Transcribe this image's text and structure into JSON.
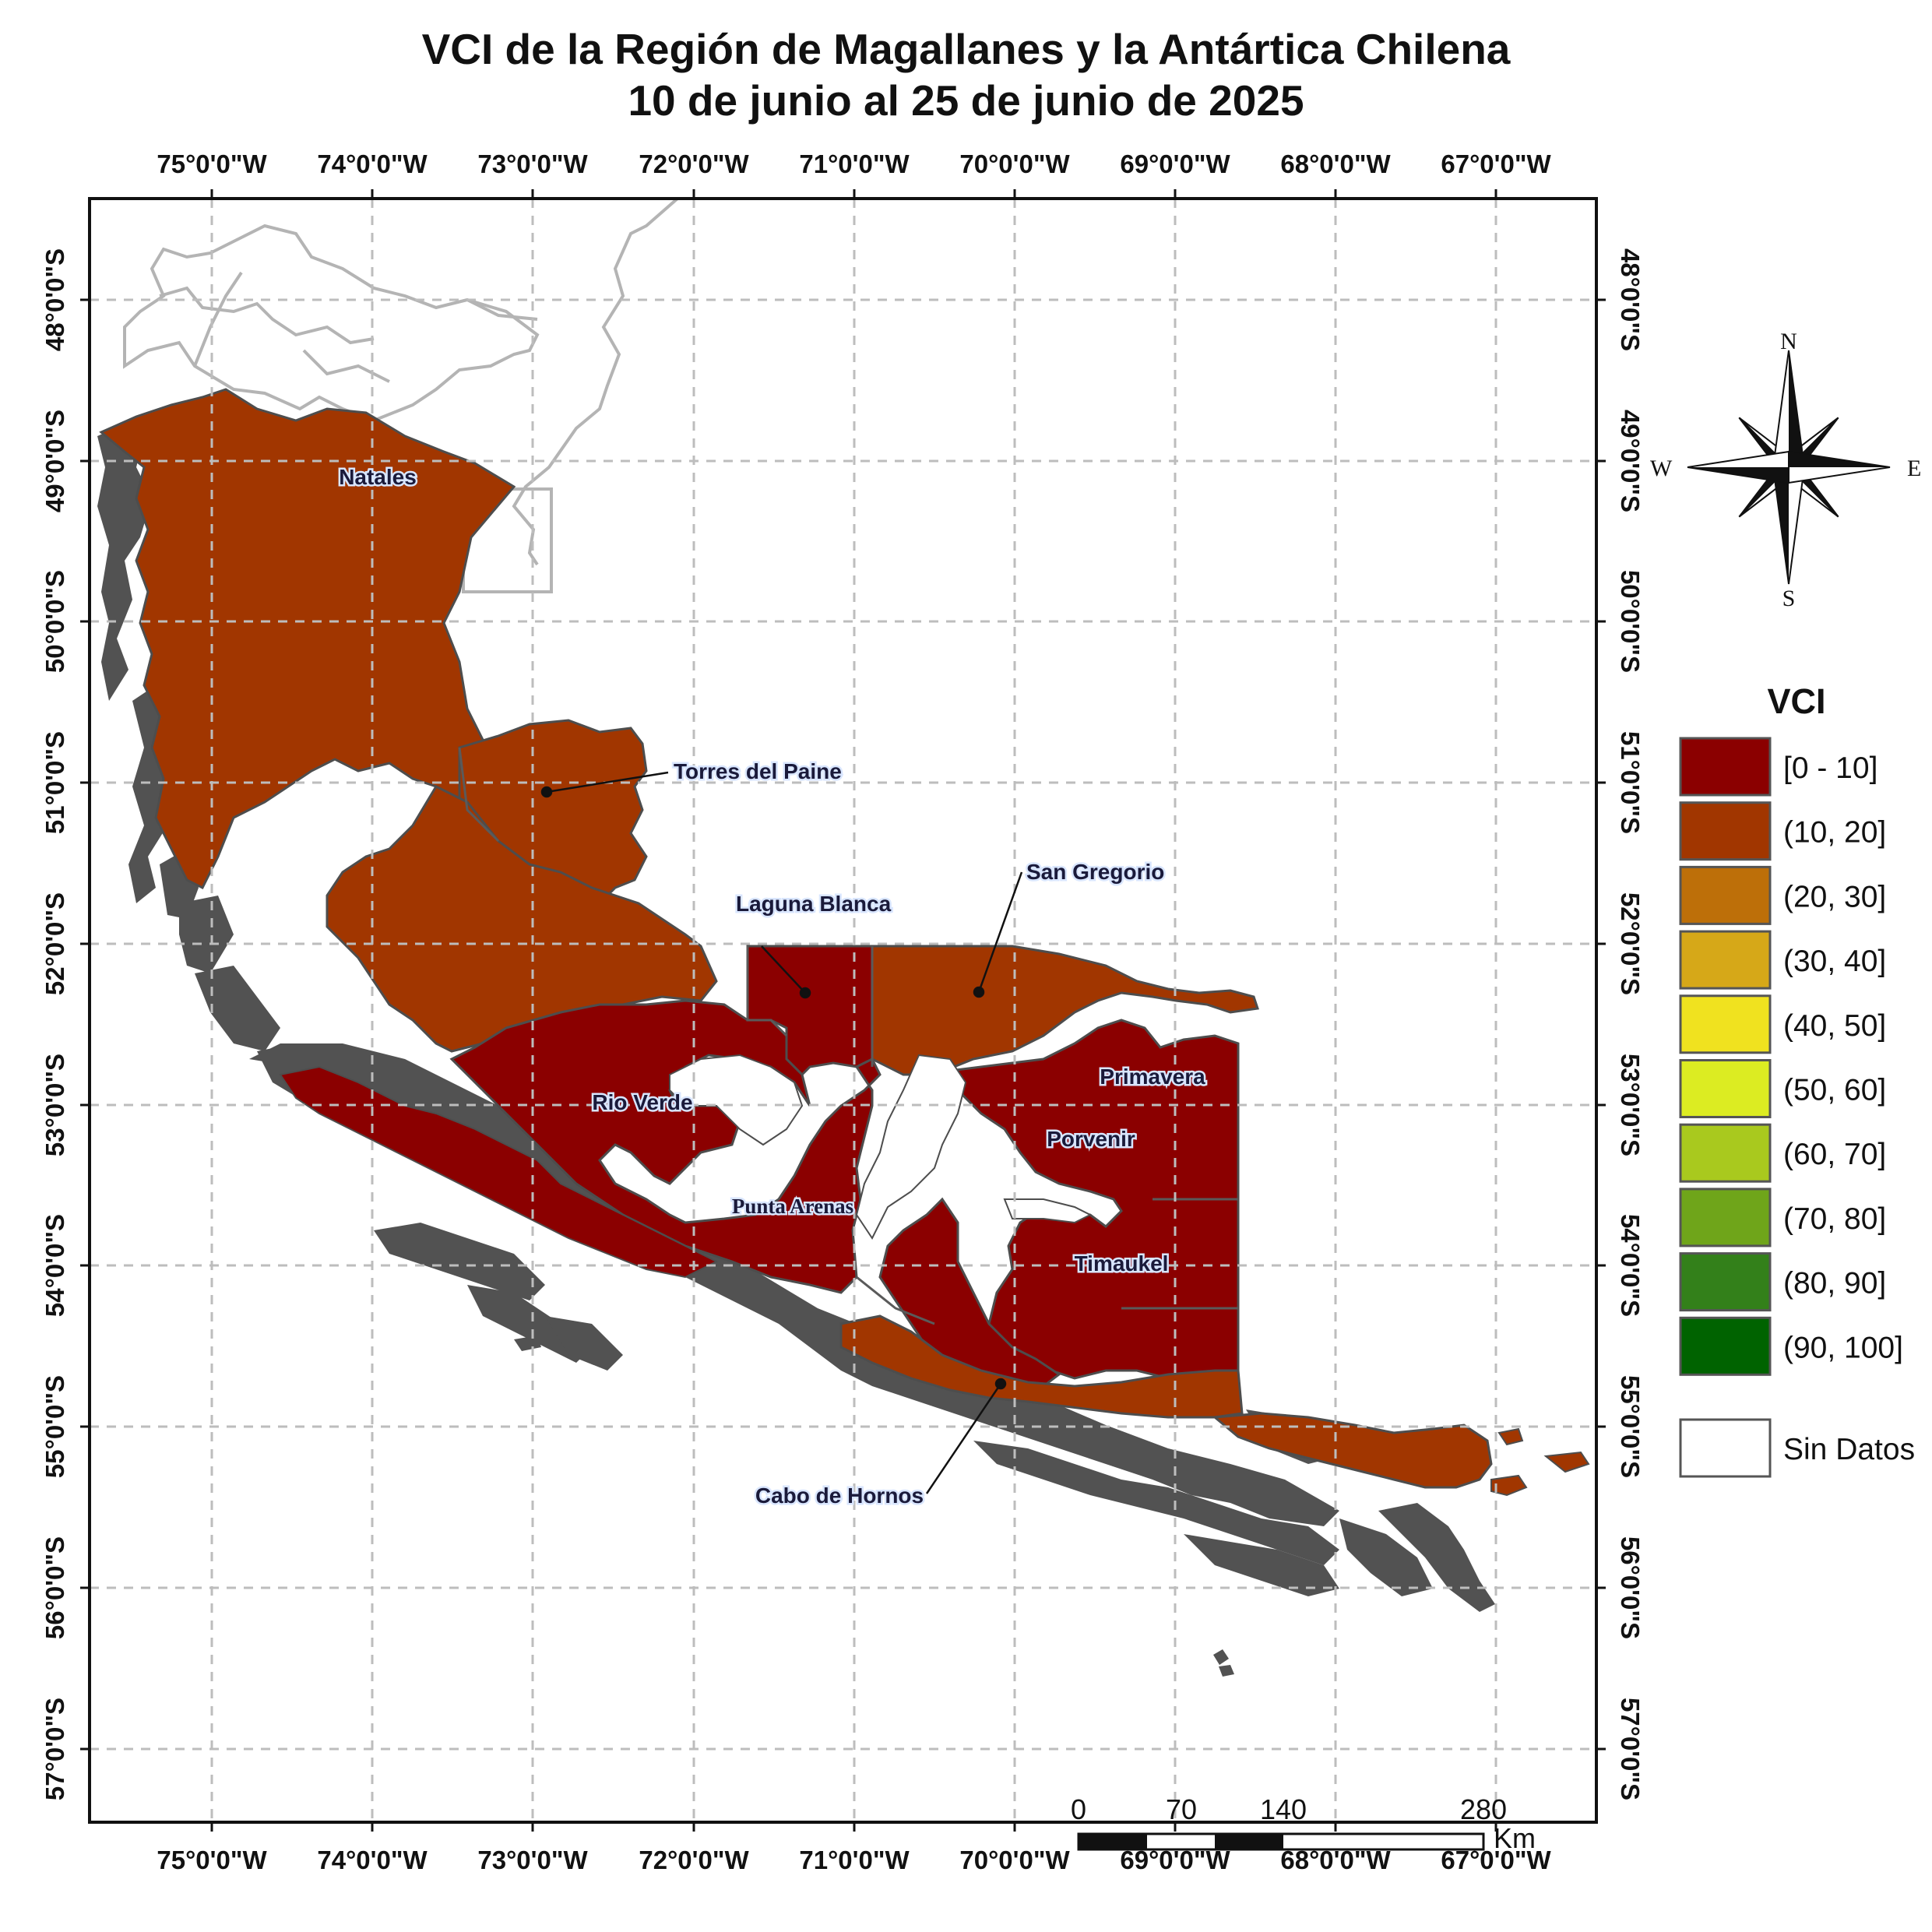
{
  "title": {
    "line1": "VCI de la Región de Magallanes y la Antártica Chilena",
    "line2": "10 de junio al 25 de junio de 2025"
  },
  "longitude_labels": [
    "75°0'0\"W",
    "74°0'0\"W",
    "73°0'0\"W",
    "72°0'0\"W",
    "71°0'0\"W",
    "70°0'0\"W",
    "69°0'0\"W",
    "68°0'0\"W",
    "67°0'0\"W"
  ],
  "latitude_labels": [
    "48°0'0\"S",
    "49°0'0\"S",
    "50°0'0\"S",
    "51°0'0\"S",
    "52°0'0\"S",
    "53°0'0\"S",
    "54°0'0\"S",
    "55°0'0\"S",
    "56°0'0\"S",
    "57°0'0\"S"
  ],
  "communes": [
    {
      "name": "Natales",
      "vci_class": "(10, 20]"
    },
    {
      "name": "Torres del Paine",
      "vci_class": "(10, 20]"
    },
    {
      "name": "Laguna Blanca",
      "vci_class": "[0 - 10]"
    },
    {
      "name": "San Gregorio",
      "vci_class": "(10, 20]"
    },
    {
      "name": "Rio Verde",
      "vci_class": "[0 - 10]"
    },
    {
      "name": "Punta Arenas",
      "vci_class": "[0 - 10]"
    },
    {
      "name": "Primavera",
      "vci_class": "[0 - 10]"
    },
    {
      "name": "Porvenir",
      "vci_class": "[0 - 10]"
    },
    {
      "name": "Timaukel",
      "vci_class": "[0 - 10]"
    },
    {
      "name": "Cabo de Hornos",
      "vci_class": "(10, 20]"
    }
  ],
  "legend": {
    "title": "VCI",
    "classes": [
      {
        "label": "[0 - 10]",
        "color": "#8b0000"
      },
      {
        "label": "(10, 20]",
        "color": "#a13600"
      },
      {
        "label": "(20, 30]",
        "color": "#bd6f09"
      },
      {
        "label": "(30, 40]",
        "color": "#d6a818"
      },
      {
        "label": "(40, 50]",
        "color": "#f0e21f"
      },
      {
        "label": "(50, 60]",
        "color": "#dcec22"
      },
      {
        "label": "(60, 70]",
        "color": "#a9c91e"
      },
      {
        "label": "(70, 80]",
        "color": "#6fa51a"
      },
      {
        "label": "(80, 90]",
        "color": "#33801a"
      },
      {
        "label": "(90, 100]",
        "color": "#006300"
      }
    ],
    "no_data": {
      "label": "Sin Datos",
      "color": "#ffffff"
    }
  },
  "compass": {
    "n": "N",
    "s": "S",
    "e": "E",
    "w": "W"
  },
  "scale_bar": {
    "ticks": [
      "0",
      "70",
      "140",
      "280"
    ],
    "unit": "Km"
  }
}
